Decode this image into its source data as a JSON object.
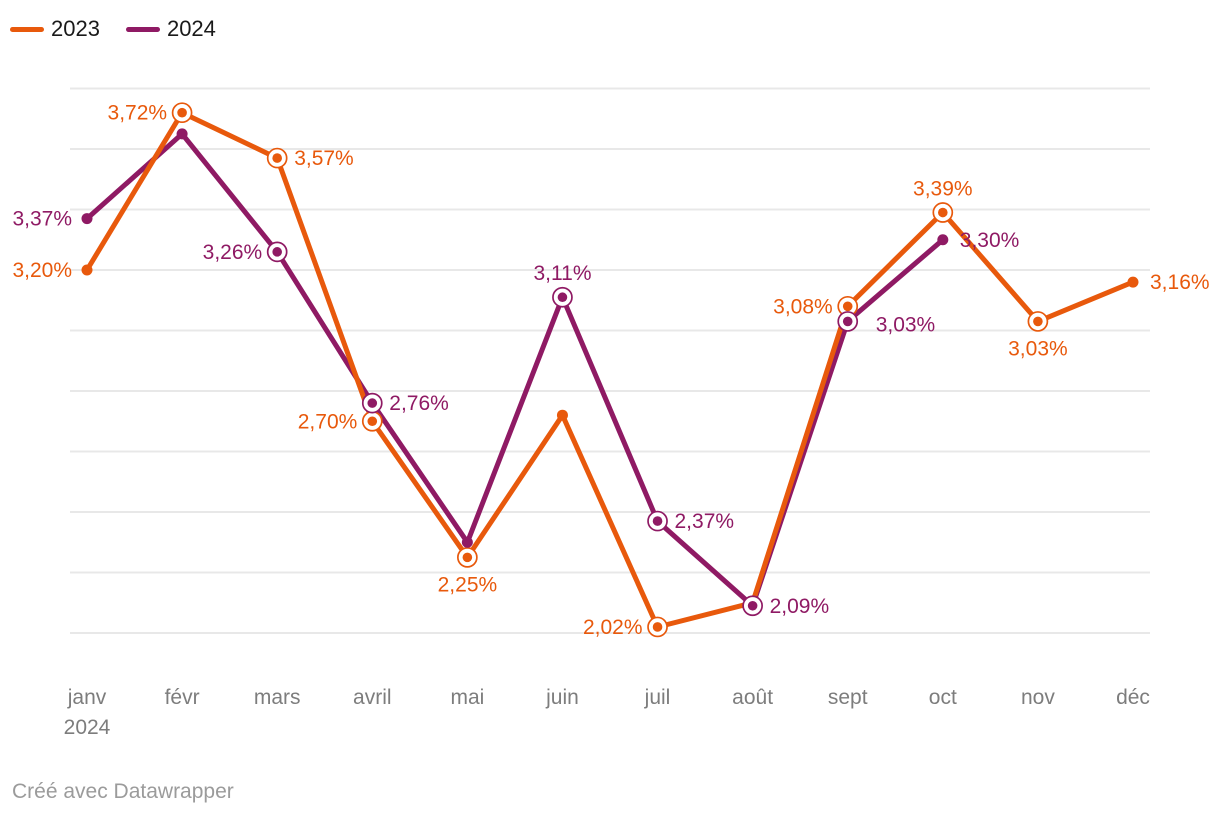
{
  "legend": {
    "items": [
      {
        "label": "2023",
        "color": "#E8590C"
      },
      {
        "label": "2024",
        "color": "#8F1A64"
      }
    ]
  },
  "footer": {
    "text": "Créé avec Datawrapper"
  },
  "chart_data": {
    "type": "line",
    "title": "",
    "categories": [
      "janv",
      "févr",
      "mars",
      "avril",
      "mai",
      "juin",
      "juil",
      "août",
      "sept",
      "oct",
      "nov",
      "déc"
    ],
    "x_axis_year_label": {
      "category_index": 0,
      "text": "2024"
    },
    "ylim": [
      2.0,
      3.8
    ],
    "grid_step": 0.2,
    "grid": true,
    "legend_position": "top-left",
    "value_suffix": "%",
    "series": [
      {
        "name": "2023",
        "color": "#E8590C",
        "values": [
          3.2,
          3.72,
          3.57,
          2.7,
          2.25,
          2.72,
          2.02,
          2.1,
          3.08,
          3.39,
          3.03,
          3.16
        ],
        "point_labels": [
          "3,20%",
          "3,72%",
          "3,57%",
          "2,70%",
          "2,25%",
          null,
          "2,02%",
          null,
          "3,08%",
          "3,39%",
          "3,03%",
          "3,16%"
        ],
        "label_side": [
          "left",
          "left",
          "right",
          "left",
          "below",
          null,
          "left",
          null,
          "left",
          "above",
          "below",
          "right"
        ],
        "ring_marker": [
          false,
          true,
          true,
          true,
          true,
          false,
          true,
          false,
          true,
          true,
          true,
          false
        ]
      },
      {
        "name": "2024",
        "color": "#8F1A64",
        "values": [
          3.37,
          3.65,
          3.26,
          2.76,
          2.3,
          3.11,
          2.37,
          2.09,
          3.03,
          3.3,
          null,
          null
        ],
        "point_labels": [
          "3,37%",
          null,
          "3,26%",
          "2,76%",
          null,
          "3,11%",
          "2,37%",
          "2,09%",
          "3,03%",
          "3,30%",
          null,
          null
        ],
        "label_side": [
          "left",
          null,
          "left",
          "right",
          null,
          "above",
          "right",
          "right",
          "right-below",
          "right",
          null,
          null
        ],
        "ring_marker": [
          false,
          false,
          true,
          true,
          false,
          true,
          true,
          true,
          true,
          false,
          false,
          false
        ]
      }
    ],
    "colors": {
      "grid": "#e8e8e8",
      "tick_label": "#7d7d7d",
      "footer": "#9b9b9b",
      "legend_text": "#1a1a1a"
    }
  }
}
